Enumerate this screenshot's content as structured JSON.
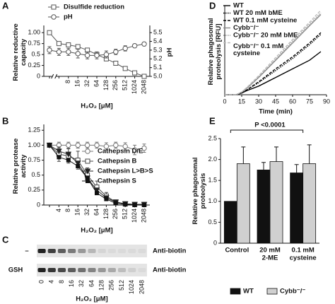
{
  "chart_data": [
    {
      "type": "line",
      "panel": "A",
      "ylabel": [
        "Relative reductive",
        "capacity"
      ],
      "y2label": "pH",
      "xlabel": "H₂O₂ [μM]",
      "categories": [
        null,
        null,
        "8",
        "16",
        "32",
        "64",
        "128",
        "256",
        "512",
        "1024",
        "2048"
      ],
      "ylim": [
        0,
        1.1
      ],
      "yticks": [
        0,
        0.25,
        0.5,
        0.75,
        {
          "value": 1,
          "label": "1.00"
        }
      ],
      "y2lim": [
        5.0,
        5.55
      ],
      "y2ticks": [
        {
          "value": 5,
          "label": "5.0"
        },
        5.1,
        5.2,
        5.3,
        5.4,
        5.5
      ],
      "legend": "top",
      "series": [
        {
          "name": "Disulfide reduction",
          "color": "#555555",
          "marker": "square",
          "values": [
            1.0,
            0.75,
            0.72,
            0.68,
            0.6,
            0.5,
            0.4,
            0.3,
            0.18,
            0.08,
            0.0
          ]
        },
        {
          "name": "pH",
          "color": "#555555",
          "marker": "circle",
          "axis": "y2",
          "values": [
            5.3,
            5.28,
            5.28,
            5.26,
            5.24,
            5.24,
            5.25,
            5.28,
            5.32,
            5.35,
            5.37
          ],
          "errors": [
            0.04,
            0.04,
            0.04,
            0.05,
            0.04,
            0.04,
            0.04,
            0.03,
            0.03,
            0.02,
            0.02
          ]
        }
      ]
    },
    {
      "type": "line",
      "panel": "B",
      "ylabel": [
        "Relative protease",
        "activity"
      ],
      "xlabel": "H₂O₂ [μM]",
      "categories": [
        null,
        "4",
        "8",
        "16",
        "32",
        "64",
        "128",
        "256",
        "512",
        "1024",
        "2048"
      ],
      "ylim": [
        0,
        1.3
      ],
      "yticks": [
        0,
        0.25,
        0.5,
        0.75,
        {
          "value": 1,
          "label": "1.00"
        },
        1.25
      ],
      "legend": "right",
      "series": [
        {
          "name": "Cathepsin D/E",
          "color": "#777777",
          "marker": "circle",
          "values": [
            1.0,
            1.0,
            1.0,
            1.0,
            1.0,
            1.0,
            0.98,
            1.0,
            0.98,
            0.92,
            0.95
          ],
          "errors": [
            0,
            0.05,
            0.05,
            0.05,
            0.05,
            0.05,
            0.06,
            0.05,
            0.06,
            0.08,
            0.07
          ]
        },
        {
          "name": "Cathepsin B",
          "color": "#444444",
          "marker": "square",
          "values": [
            1.0,
            0.85,
            0.82,
            0.75,
            0.5,
            0.3,
            0.15,
            0.05,
            0.02,
            0.01,
            0.01
          ],
          "errors": [
            0,
            0.12,
            0.12,
            0.15,
            0.12,
            0.1,
            0.06,
            0.03,
            0.02,
            0.01,
            0.01
          ]
        },
        {
          "name": "Cathepsin L>B>S",
          "color": "#222222",
          "marker": "triangle",
          "values": [
            1.0,
            0.9,
            0.85,
            0.7,
            0.45,
            0.25,
            0.12,
            0.05,
            0.02,
            0.01,
            0.01
          ]
        },
        {
          "name": "Cathepsin S",
          "color": "#111111",
          "marker": "filled-square",
          "values": [
            1.0,
            0.8,
            0.75,
            0.65,
            0.45,
            0.2,
            0.1,
            0.03,
            0.01,
            0.0,
            0.0
          ]
        }
      ]
    },
    {
      "type": "line",
      "panel": "D",
      "ylabel": [
        "Relative phagosomal",
        "proteolysis [RFU]"
      ],
      "xlabel": "Time (min)",
      "x": [
        0,
        10,
        15,
        20,
        30,
        45,
        60,
        75,
        85
      ],
      "xlim": [
        0,
        90
      ],
      "xticks": [
        0,
        15,
        30,
        45,
        60,
        75,
        90
      ],
      "ylim": [
        0,
        1
      ],
      "legend": "top-left",
      "series": [
        {
          "name": "WT",
          "color": "#000000",
          "dash": "solid",
          "values": [
            0,
            0,
            0.02,
            0.05,
            0.1,
            0.2,
            0.3,
            0.4,
            0.5
          ]
        },
        {
          "name": "WT 20 mM bME",
          "color": "#000000",
          "dash": "dotted",
          "values": [
            0,
            0,
            0.02,
            0.06,
            0.14,
            0.28,
            0.42,
            0.58,
            0.7
          ]
        },
        {
          "name": "WT 0.1 mM cysteine",
          "color": "#000000",
          "dash": "dashed",
          "values": [
            0,
            0,
            0.02,
            0.06,
            0.15,
            0.3,
            0.44,
            0.6,
            0.72
          ]
        },
        {
          "name": "Cybb⁻/⁻",
          "color": "#888888",
          "dash": "solid",
          "values": [
            0,
            0,
            0.03,
            0.08,
            0.2,
            0.4,
            0.6,
            0.8,
            0.93
          ]
        },
        {
          "name": "Cybb⁻/⁻ 20 mM bME",
          "color": "#999999",
          "dash": "dotted",
          "values": [
            0,
            0,
            0.03,
            0.09,
            0.21,
            0.41,
            0.62,
            0.82,
            0.95
          ]
        },
        {
          "name": [
            "Cybb⁻/⁻ 0.1 mM",
            "cysteine"
          ],
          "color": "#bbbbbb",
          "dash": "dashed",
          "values": [
            0,
            0,
            0.03,
            0.09,
            0.22,
            0.43,
            0.64,
            0.84,
            0.98
          ]
        }
      ]
    },
    {
      "type": "bar",
      "panel": "E",
      "ylabel": [
        "Relative phagosomal",
        "proteolysis"
      ],
      "categories": [
        [
          "Control"
        ],
        [
          "20 mM",
          "2-ME"
        ],
        [
          "0.1 mM",
          "cysteine"
        ]
      ],
      "ylim": [
        0,
        2.5
      ],
      "yticks": [
        0,
        0.5,
        {
          "value": 1,
          "label": "1.0"
        },
        1.5,
        {
          "value": 2,
          "label": "2.0"
        },
        2.5
      ],
      "annotation": "P <0.0001",
      "legend": "bottom",
      "series": [
        {
          "name": "WT",
          "color": "#111111",
          "values": [
            1.0,
            1.75,
            1.68
          ],
          "errors": [
            0,
            0.18,
            0.2
          ]
        },
        {
          "name": "Cybb⁻/⁻",
          "color": "#d0d0d0",
          "values": [
            1.9,
            1.95,
            1.9
          ],
          "errors": [
            0.4,
            0.35,
            0.45
          ]
        }
      ]
    }
  ],
  "blot": {
    "panel": "C",
    "rows": [
      {
        "label": "–",
        "probe": "Anti-biotin"
      },
      {
        "label": "GSH",
        "probe": "Anti-biotin"
      }
    ],
    "lanes": [
      "0",
      "4",
      "8",
      "16",
      "32",
      "64",
      "128",
      "256",
      "512",
      "1024",
      "2048"
    ],
    "xlabel": "H₂O₂ [μM]"
  }
}
